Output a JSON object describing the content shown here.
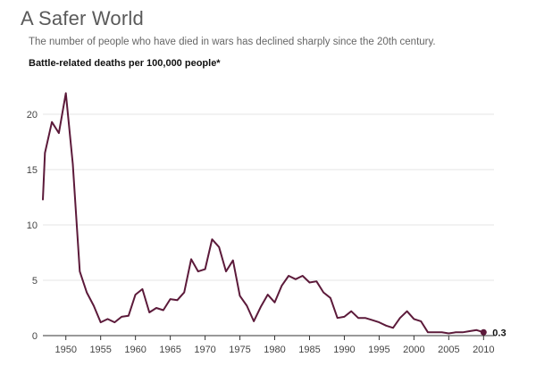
{
  "colors": {
    "series": "#5c1a3a",
    "grid": "#e6e6e6",
    "axis": "#333333"
  },
  "chart_data": {
    "type": "line",
    "title": "A Safer World",
    "subtitle": "The number of people who have died in wars has declined sharply since the 20th century.",
    "ylabel": "Battle-related deaths per 100,000 people*",
    "xlabel": "",
    "xlim": [
      1946.7,
      2011.5
    ],
    "ylim": [
      0,
      22
    ],
    "grid": true,
    "legend": "none",
    "xticks": [
      {
        "value": 1950,
        "label": "1950"
      },
      {
        "value": 1955,
        "label": "1955"
      },
      {
        "value": 1960,
        "label": "1960"
      },
      {
        "value": 1965,
        "label": "1965"
      },
      {
        "value": 1970,
        "label": "1970"
      },
      {
        "value": 1975,
        "label": "1975"
      },
      {
        "value": 1980,
        "label": "1980"
      },
      {
        "value": 1985,
        "label": "1985"
      },
      {
        "value": 1990,
        "label": "1990"
      },
      {
        "value": 1995,
        "label": "1995"
      },
      {
        "value": 2000,
        "label": "2000"
      },
      {
        "value": 2005,
        "label": "2005"
      },
      {
        "value": 2010,
        "label": "2010"
      }
    ],
    "yticks": [
      {
        "value": 0,
        "label": "0"
      },
      {
        "value": 5,
        "label": "5"
      },
      {
        "value": 10,
        "label": "10"
      },
      {
        "value": 15,
        "label": "15"
      },
      {
        "value": 20,
        "label": "20"
      }
    ],
    "series": [
      {
        "x": [
          1946,
          1947,
          1948,
          1949,
          1950,
          1951,
          1952,
          1953,
          1954,
          1955,
          1956,
          1957,
          1958,
          1959,
          1960,
          1961,
          1962,
          1963,
          1964,
          1965,
          1966,
          1967,
          1968,
          1969,
          1970,
          1971,
          1972,
          1973,
          1974,
          1975,
          1976,
          1977,
          1978,
          1979,
          1980,
          1981,
          1982,
          1983,
          1984,
          1985,
          1986,
          1987,
          1988,
          1989,
          1990,
          1991,
          1992,
          1993,
          1994,
          1995,
          1996,
          1997,
          1998,
          1999,
          2000,
          2001,
          2002,
          2003,
          2004,
          2005,
          2006,
          2007,
          2008,
          2009,
          2010
        ],
        "values": [
          12.3,
          16.5,
          19.3,
          18.3,
          21.9,
          15.5,
          5.8,
          3.9,
          2.7,
          1.2,
          1.5,
          1.2,
          1.7,
          1.8,
          3.7,
          4.2,
          2.1,
          2.5,
          2.3,
          3.3,
          3.2,
          3.9,
          6.9,
          5.8,
          6.0,
          8.7,
          8.0,
          5.8,
          6.8,
          3.6,
          2.7,
          1.3,
          2.6,
          3.7,
          3.0,
          4.5,
          5.4,
          5.1,
          5.4,
          4.8,
          4.9,
          3.9,
          3.4,
          1.6,
          1.7,
          2.2,
          1.6,
          1.6,
          1.4,
          1.2,
          0.9,
          0.7,
          1.6,
          2.2,
          1.5,
          1.3,
          0.3,
          0.3,
          0.3,
          0.2,
          0.3,
          0.3,
          0.4,
          0.5,
          0.3
        ]
      }
    ],
    "annotations": [
      {
        "x": 2010,
        "y": 0.3,
        "label": "0.3"
      }
    ]
  }
}
